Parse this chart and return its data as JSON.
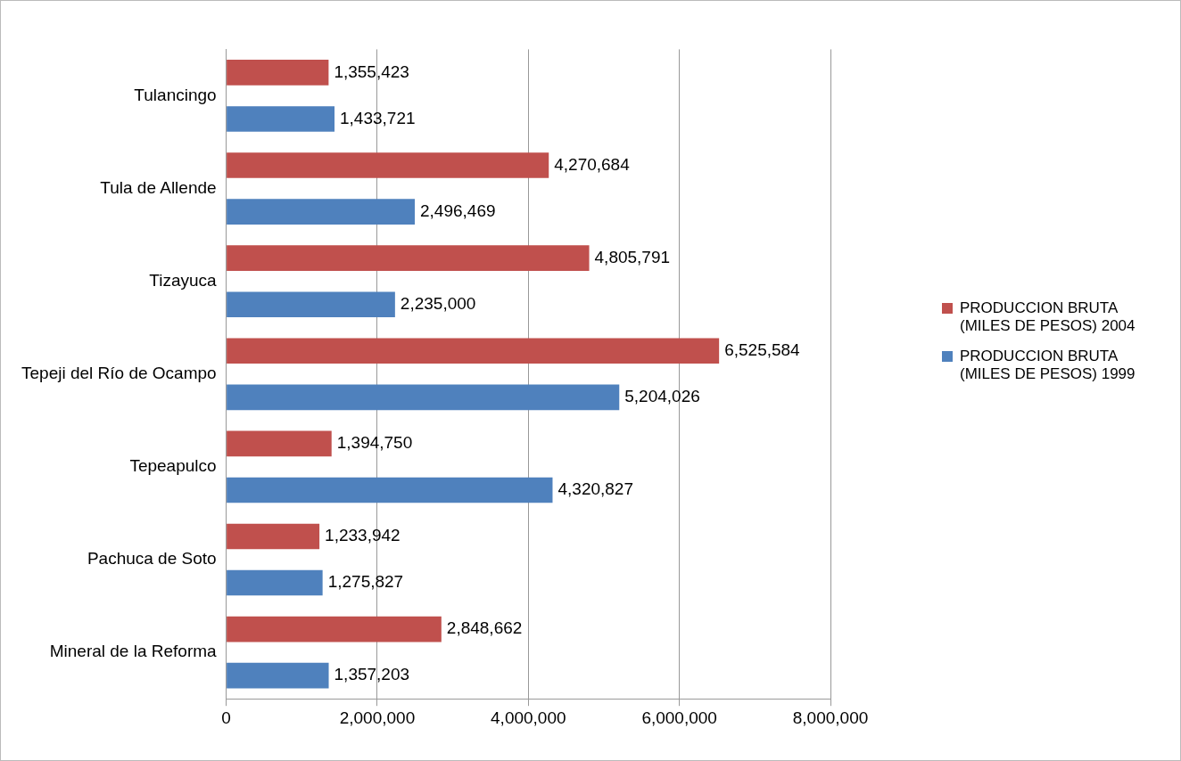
{
  "chart_data": {
    "type": "bar",
    "orientation": "horizontal",
    "categories": [
      "Tulancingo",
      "Tula de Allende",
      "Tizayuca",
      "Tepeji del Río de Ocampo",
      "Tepeapulco",
      "Pachuca de Soto",
      "Mineral de la Reforma"
    ],
    "series": [
      {
        "name": "PRODUCCION BRUTA (MILES DE PESOS) 2004",
        "color": "#c0504d",
        "values": [
          1355423,
          4270684,
          4805791,
          6525584,
          1394750,
          1233942,
          2848662
        ],
        "value_labels": [
          "1,355,423",
          "4,270,684",
          "4,805,791",
          "6,525,584",
          "1,394,750",
          "1,233,942",
          "2,848,662"
        ]
      },
      {
        "name": "PRODUCCION BRUTA (MILES DE PESOS) 1999",
        "color": "#4f81bd",
        "values": [
          1433721,
          2496469,
          2235000,
          5204026,
          4320827,
          1275827,
          1357203
        ],
        "value_labels": [
          "1,433,721",
          "2,496,469",
          "2,235,000",
          "5,204,026",
          "4,320,827",
          "1,275,827",
          "1,357,203"
        ]
      }
    ],
    "xlim": [
      0,
      8000000
    ],
    "xticks": [
      0,
      {
        "value": 2000000,
        "label": "2,000,000"
      },
      {
        "value": 4000000,
        "label": "4,000,000"
      },
      {
        "value": 6000000,
        "label": "6,000,000"
      },
      {
        "value": 8000000,
        "label": "8,000,000"
      }
    ],
    "grid": "x",
    "legend": "right"
  }
}
